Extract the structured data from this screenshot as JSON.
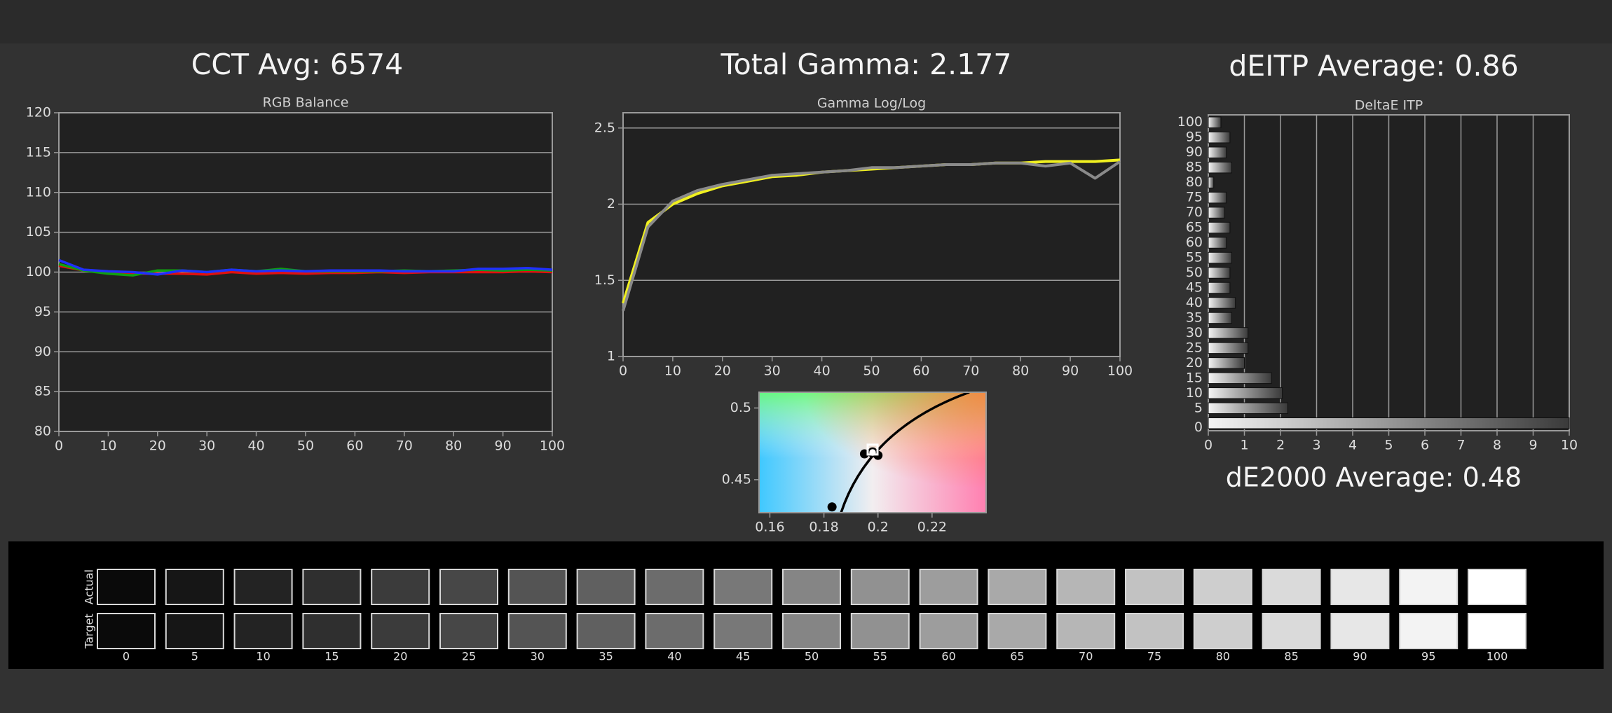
{
  "chart_data": [
    {
      "type": "line",
      "heading": "CCT Avg: 6574",
      "title": "RGB Balance",
      "x": [
        0,
        5,
        10,
        15,
        20,
        25,
        30,
        35,
        40,
        45,
        50,
        55,
        60,
        65,
        70,
        75,
        80,
        85,
        90,
        95,
        100
      ],
      "series": [
        {
          "color": "#e01010",
          "values": [
            100.8,
            100.2,
            100,
            99.8,
            99.8,
            99.8,
            99.7,
            100,
            99.8,
            99.9,
            99.8,
            99.9,
            99.9,
            100,
            99.9,
            100,
            100,
            100,
            100,
            100.1,
            100
          ]
        },
        {
          "color": "#10a010",
          "values": [
            101,
            100.2,
            99.8,
            99.6,
            100.2,
            100.2,
            100,
            100.3,
            100.1,
            100.4,
            100.1,
            100.1,
            100.1,
            100.1,
            100.2,
            100.1,
            100.2,
            100.3,
            100.2,
            100.3,
            100.2
          ]
        },
        {
          "color": "#2030ff",
          "values": [
            101.5,
            100.3,
            100.1,
            100,
            99.7,
            100.2,
            100,
            100.3,
            100.1,
            100.2,
            100.1,
            100.2,
            100.2,
            100.2,
            100.1,
            100.1,
            100.1,
            100.4,
            100.4,
            100.5,
            100.3
          ]
        }
      ],
      "xlim": [
        0,
        100
      ],
      "xticks": [
        0,
        10,
        20,
        30,
        40,
        50,
        60,
        70,
        80,
        90,
        100
      ],
      "ylim": [
        80,
        120
      ],
      "yticks": [
        80,
        85,
        90,
        95,
        100,
        105,
        110,
        115,
        120
      ],
      "grid": true
    },
    {
      "type": "line",
      "heading": "Total Gamma: 2.177",
      "title": "Gamma Log/Log",
      "x": [
        0,
        5,
        10,
        15,
        20,
        25,
        30,
        35,
        40,
        45,
        50,
        55,
        60,
        65,
        70,
        75,
        80,
        85,
        90,
        95,
        100
      ],
      "series": [
        {
          "color": "#f0f020",
          "values": [
            1.35,
            1.88,
            2.0,
            2.07,
            2.12,
            2.15,
            2.18,
            2.19,
            2.21,
            2.22,
            2.23,
            2.24,
            2.25,
            2.26,
            2.26,
            2.27,
            2.27,
            2.28,
            2.28,
            2.28,
            2.29
          ]
        },
        {
          "color": "#8a8a8a",
          "values": [
            1.3,
            1.85,
            2.02,
            2.09,
            2.13,
            2.16,
            2.19,
            2.2,
            2.21,
            2.22,
            2.24,
            2.24,
            2.25,
            2.26,
            2.26,
            2.27,
            2.27,
            2.25,
            2.27,
            2.17,
            2.28
          ]
        }
      ],
      "xlim": [
        0,
        100
      ],
      "xticks": [
        0,
        10,
        20,
        30,
        40,
        50,
        60,
        70,
        80,
        90,
        100
      ],
      "ylim": [
        1,
        2.6
      ],
      "yticks": [
        1,
        1.5,
        2,
        2.5
      ],
      "grid": true
    },
    {
      "type": "scatter",
      "series": [
        {
          "color": "#000000",
          "marker": "dot",
          "x": [
            0.183,
            0.195,
            0.2
          ],
          "y": [
            0.431,
            0.468,
            0.467
          ]
        },
        {
          "color": "#ffffff",
          "marker": "circle",
          "x": [
            0.198
          ],
          "y": [
            0.469
          ]
        },
        {
          "color": "#ffffff",
          "marker": "square",
          "x": [
            0.198
          ],
          "y": [
            0.471
          ]
        }
      ],
      "xlim": [
        0.156,
        0.24
      ],
      "xticks": [
        0.16,
        0.18,
        0.2,
        0.22
      ],
      "ylim": [
        0.427,
        0.511
      ],
      "yticks": [
        0.45,
        0.5
      ]
    },
    {
      "type": "hbar",
      "heading": "dEITP Average: 0.86",
      "title": "DeltaE ITP",
      "annotation": "dE2000 Average: 0.48",
      "categories": [
        100,
        95,
        90,
        85,
        80,
        75,
        70,
        65,
        60,
        55,
        50,
        45,
        40,
        35,
        30,
        25,
        20,
        15,
        10,
        5,
        0
      ],
      "values": [
        0.35,
        0.6,
        0.5,
        0.65,
        0.15,
        0.5,
        0.45,
        0.6,
        0.5,
        0.65,
        0.6,
        0.6,
        0.75,
        0.65,
        1.1,
        1.1,
        1.0,
        1.75,
        2.05,
        2.2,
        10
      ],
      "xlim": [
        0,
        10
      ],
      "xticks": [
        0,
        1,
        2,
        3,
        4,
        5,
        6,
        7,
        8,
        9,
        10
      ],
      "grid": true
    }
  ],
  "swatches": {
    "rows": [
      "Actual",
      "Target"
    ],
    "labels": [
      0,
      5,
      10,
      15,
      20,
      25,
      30,
      35,
      40,
      45,
      50,
      55,
      60,
      65,
      70,
      75,
      80,
      85,
      90,
      95,
      100
    ]
  }
}
